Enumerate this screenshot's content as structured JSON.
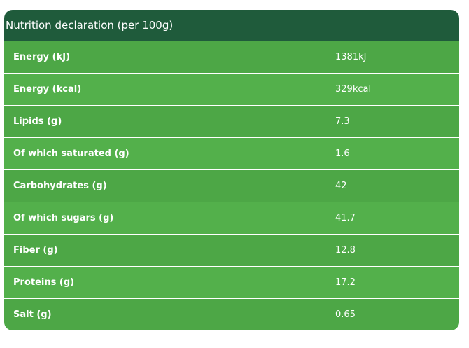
{
  "table": {
    "title": "Nutrition declaration (per 100g)",
    "rows": [
      [
        "Energy (kJ)",
        "1381kJ"
      ],
      [
        "Energy (kcal)",
        "329kcal"
      ],
      [
        "Lipids (g)",
        "7.3"
      ],
      [
        "Of which saturated (g)",
        "1.6"
      ],
      [
        "Carbohydrates (g)",
        "42"
      ],
      [
        "Of which sugars (g)",
        "41.7"
      ],
      [
        "Fiber (g)",
        "12.8"
      ],
      [
        "Proteins (g)",
        "17.2"
      ],
      [
        "Salt (g)",
        "0.65"
      ]
    ]
  }
}
